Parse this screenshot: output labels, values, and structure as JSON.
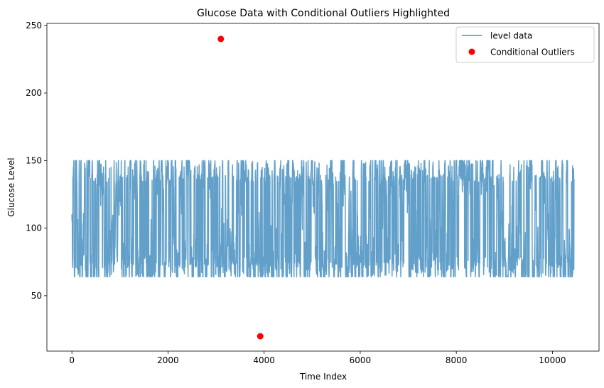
{
  "chart_data": {
    "type": "line",
    "title": "Glucose Data with Conditional Outliers Highlighted",
    "xlabel": "Time Index",
    "ylabel": "Glucose Level",
    "xlim": [
      -520,
      10970
    ],
    "ylim": [
      9,
      251.5
    ],
    "xticks": [
      0,
      2000,
      4000,
      6000,
      8000,
      10000
    ],
    "yticks": [
      50,
      100,
      150,
      200,
      250
    ],
    "grid": false,
    "legend_position": "top-right",
    "series": [
      {
        "name": "level data",
        "kind": "line",
        "color": "#1f77b4",
        "alpha": 0.7,
        "x_start": 0,
        "x_end": 10450,
        "n_points": 10450,
        "min": 64,
        "max": 150,
        "typical_range": [
          75,
          140
        ]
      },
      {
        "name": "Conditional Outliers",
        "kind": "scatter",
        "color": "#ff0000",
        "points": [
          {
            "x": 3100,
            "y": 240
          },
          {
            "x": 3920,
            "y": 20
          }
        ]
      }
    ]
  }
}
